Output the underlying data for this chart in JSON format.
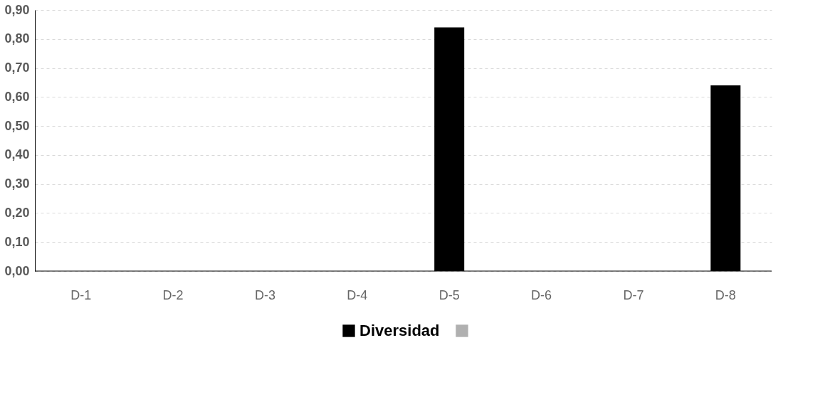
{
  "chart_data": {
    "type": "bar",
    "categories": [
      "D-1",
      "D-2",
      "D-3",
      "D-4",
      "D-5",
      "D-6",
      "D-7",
      "D-8"
    ],
    "series": [
      {
        "name": "Diversidad",
        "color": "#000000",
        "values": [
          0,
          0,
          0,
          0,
          0.84,
          0,
          0,
          0.64
        ]
      },
      {
        "color": "#b0b0b0",
        "values": [
          0,
          0,
          0,
          0,
          0,
          0,
          0,
          0
        ]
      }
    ],
    "ylim": [
      0,
      0.9
    ],
    "yticks": [
      {
        "value": 0,
        "label": "0,00"
      },
      {
        "value": 0.1,
        "label": "0,10"
      },
      {
        "value": 0.2,
        "label": "0,20"
      },
      {
        "value": 0.3,
        "label": "0,30"
      },
      {
        "value": 0.4,
        "label": "0,40"
      },
      {
        "value": 0.5,
        "label": "0,50"
      },
      {
        "value": 0.6,
        "label": "0,60"
      },
      {
        "value": 0.7,
        "label": "0,70"
      },
      {
        "value": 0.8,
        "label": "0,80"
      },
      {
        "value": 0.9,
        "label": "0,90"
      }
    ],
    "grid": "y",
    "legend": "bottom"
  }
}
